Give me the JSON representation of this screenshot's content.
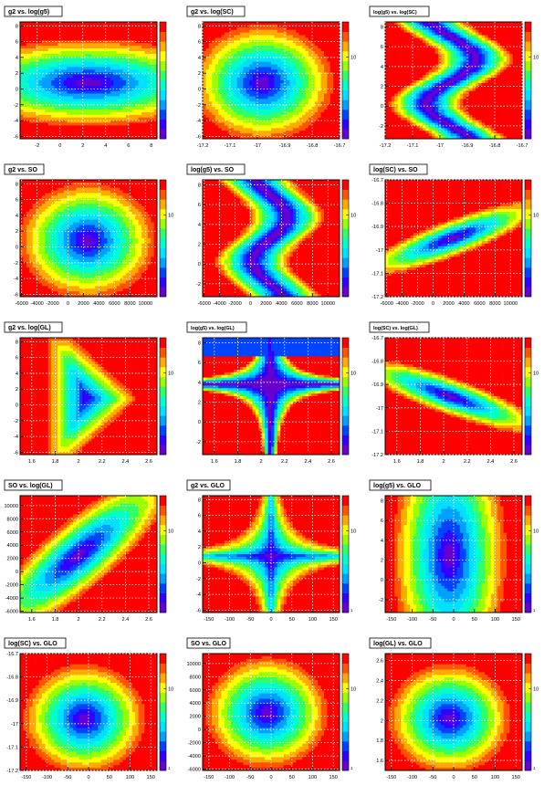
{
  "page": {
    "footer_text": ""
  },
  "colors": {
    "palette": [
      "#6600cc",
      "#3300ff",
      "#0044ff",
      "#00a0ff",
      "#00e0ff",
      "#00ffcc",
      "#33ff66",
      "#99ff00",
      "#ffff00",
      "#ffaa00",
      "#ff5500",
      "#ff0000"
    ]
  },
  "chart_data": [
    {
      "type": "heatmap",
      "title": "g2 vs. log(g5)",
      "x_ticks": [
        "-2",
        "0",
        "2",
        "4",
        "6",
        "8"
      ],
      "xlim": [
        -3.5,
        8.5
      ],
      "y_ticks": [
        "-6",
        "-4",
        "-2",
        "0",
        "2",
        "4",
        "6",
        "8"
      ],
      "ylim": [
        -6.3,
        8.5
      ],
      "z_ticks": [],
      "scale_tick": "",
      "grid": true,
      "map": {
        "kind": "ellipse",
        "cx": 2.5,
        "cy": 0.8,
        "sx": 16,
        "sy": 7.5
      }
    },
    {
      "type": "heatmap",
      "title": "g2 vs. log(SC)",
      "x_ticks": [
        "-17.2",
        "-17.1",
        "-17",
        "-16.9",
        "-16.8",
        "-16.7"
      ],
      "xlim": [
        -17.2,
        -16.7
      ],
      "y_ticks": [
        "-6",
        "-4",
        "-2",
        "0",
        "2",
        "4",
        "6",
        "8"
      ],
      "ylim": [
        -6.3,
        8.5
      ],
      "z_ticks": [
        "10"
      ],
      "scale_tick": "",
      "grid": true,
      "map": {
        "kind": "ellipse",
        "cx": -16.98,
        "cy": 0.8,
        "sx": 0.35,
        "sy": 10
      }
    },
    {
      "type": "heatmap",
      "title": "log(g5) vs. log(SC)",
      "x_ticks": [
        "-17.2",
        "-17.1",
        "-17",
        "-16.9",
        "-16.8",
        "-16.7"
      ],
      "xlim": [
        -17.2,
        -16.7
      ],
      "y_ticks": [
        "-2",
        "0",
        "2",
        "4",
        "6",
        "8"
      ],
      "ylim": [
        -3.3,
        8.5
      ],
      "z_ticks": [
        "10"
      ],
      "scale_tick": "",
      "grid": true,
      "map": {
        "kind": "wave",
        "cx": -16.96,
        "amp": 0.09,
        "cy": 2.5,
        "period": 9,
        "sx": 0.28
      }
    },
    {
      "type": "heatmap",
      "title": "g2 vs. SO",
      "x_ticks": [
        "-6000",
        "-4000",
        "-2000",
        "0",
        "2000",
        "4000",
        "6000",
        "8000",
        "10000"
      ],
      "xlim": [
        -6200,
        11500
      ],
      "y_ticks": [
        "-6",
        "-4",
        "-2",
        "0",
        "2",
        "4",
        "6",
        "8"
      ],
      "ylim": [
        -6.3,
        8.5
      ],
      "z_ticks": [
        "10"
      ],
      "scale_tick": "",
      "grid": true,
      "map": {
        "kind": "ellipse",
        "cx": 2500,
        "cy": 0.8,
        "sx": 12000,
        "sy": 10
      }
    },
    {
      "type": "heatmap",
      "title": "log(g5) vs. SO",
      "x_ticks": [
        "-6000",
        "-4000",
        "-2000",
        "0",
        "2000",
        "4000",
        "6000",
        "8000",
        "10000"
      ],
      "xlim": [
        -6200,
        11500
      ],
      "y_ticks": [
        "-2",
        "0",
        "2",
        "4",
        "6",
        "8"
      ],
      "ylim": [
        -3.3,
        8.5
      ],
      "z_ticks": [
        "10"
      ],
      "scale_tick": "",
      "grid": true,
      "map": {
        "kind": "wave",
        "cx": 2500,
        "amp": 2200,
        "cy": 2.5,
        "period": 9,
        "sx": 10000
      }
    },
    {
      "type": "heatmap",
      "title": "log(SC) vs. SO",
      "x_ticks": [
        "-6000",
        "-4000",
        "-2000",
        "0",
        "2000",
        "4000",
        "6000",
        "8000",
        "10000"
      ],
      "xlim": [
        -6200,
        11500
      ],
      "y_ticks": [
        "-17.2",
        "-17.1",
        "-17",
        "-16.9",
        "-16.8",
        "-16.7"
      ],
      "ylim": [
        -17.2,
        -16.7
      ],
      "z_ticks": [
        "10"
      ],
      "scale_tick": "",
      "grid": true,
      "map": {
        "kind": "diag",
        "cx": 2500,
        "cy": -16.95,
        "slope": 0.5,
        "sx": 6500,
        "sy": 0.09,
        "dir": 1
      }
    },
    {
      "type": "heatmap",
      "title": "g2 vs. log(GL)",
      "x_ticks": [
        "1.6",
        "1.8",
        "2",
        "2.2",
        "2.4",
        "2.6"
      ],
      "xlim": [
        1.5,
        2.67
      ],
      "y_ticks": [
        "-6",
        "-4",
        "-2",
        "0",
        "2",
        "4",
        "6",
        "8"
      ],
      "ylim": [
        -6.3,
        8.5
      ],
      "z_ticks": [
        "10"
      ],
      "scale_tick": "",
      "grid": true,
      "map": {
        "kind": "tri",
        "cx": 2.02,
        "cy": 0.8,
        "sx": 1.1,
        "sy": 14
      }
    },
    {
      "type": "heatmap",
      "title": "log(g5) vs. log(GL)",
      "x_ticks": [
        "1.6",
        "1.8",
        "2",
        "2.2",
        "2.4",
        "2.6"
      ],
      "xlim": [
        1.5,
        2.67
      ],
      "y_ticks": [
        "-2",
        "0",
        "2",
        "4",
        "6",
        "8"
      ],
      "ylim": [
        -3.3,
        8.5
      ],
      "z_ticks": [
        "10"
      ],
      "scale_tick": "",
      "grid": true,
      "map": {
        "kind": "hyper",
        "cx": 2.08,
        "cy": 3.8,
        "sx": 0.5,
        "sy": 5
      }
    },
    {
      "type": "heatmap",
      "title": "log(SC) vs. log(GL)",
      "x_ticks": [
        "1.6",
        "1.8",
        "2",
        "2.2",
        "2.4",
        "2.6"
      ],
      "xlim": [
        1.5,
        2.67
      ],
      "y_ticks": [
        "-17.2",
        "-17.1",
        "-17",
        "-16.9",
        "-16.8",
        "-16.7"
      ],
      "ylim": [
        -17.2,
        -16.7
      ],
      "z_ticks": [
        "10"
      ],
      "scale_tick": "",
      "grid": true,
      "map": {
        "kind": "diag",
        "cx": 2.05,
        "cy": -16.95,
        "slope": 0.43,
        "sx": 0.45,
        "sy": 0.09,
        "dir": -1
      }
    },
    {
      "type": "heatmap",
      "title": "SO vs. log(GL)",
      "x_ticks": [
        "1.6",
        "1.8",
        "2",
        "2.2",
        "2.4",
        "2.6"
      ],
      "xlim": [
        1.5,
        2.67
      ],
      "y_ticks": [
        "-6000",
        "-4000",
        "-2000",
        "0",
        "2000",
        "4000",
        "6000",
        "8000",
        "10000"
      ],
      "ylim": [
        -6200,
        11500
      ],
      "z_ticks": [
        "10"
      ],
      "scale_tick": "",
      "grid": true,
      "map": {
        "kind": "diag",
        "cx": 2.0,
        "cy": 2500,
        "slope": 0.45,
        "sx": 0.45,
        "sy": 7000,
        "dir": 1
      }
    },
    {
      "type": "heatmap",
      "title": "g2 vs. GLO",
      "x_ticks": [
        "-150",
        "-100",
        "-50",
        "0",
        "50",
        "100",
        "150"
      ],
      "xlim": [
        -165,
        165
      ],
      "y_ticks": [
        "-6",
        "-4",
        "-2",
        "0",
        "2",
        "4",
        "6",
        "8"
      ],
      "ylim": [
        -6.3,
        8.5
      ],
      "z_ticks": [
        "10"
      ],
      "scale_tick": "1",
      "grid": true,
      "map": {
        "kind": "star",
        "cx": 0,
        "cy": 0.8,
        "sx": 90,
        "sy": 4
      }
    },
    {
      "type": "heatmap",
      "title": "log(g5) vs. GLO",
      "x_ticks": [
        "-150",
        "-100",
        "-50",
        "0",
        "50",
        "100",
        "150"
      ],
      "xlim": [
        -165,
        165
      ],
      "y_ticks": [
        "-2",
        "0",
        "2",
        "4",
        "6",
        "8"
      ],
      "ylim": [
        -3.3,
        8.5
      ],
      "z_ticks": [
        "10"
      ],
      "scale_tick": "1",
      "grid": true,
      "map": {
        "kind": "ellipse",
        "cx": -10,
        "cy": 2.5,
        "sx": 185,
        "sy": 18
      }
    },
    {
      "type": "heatmap",
      "title": "log(SC) vs. GLO",
      "x_ticks": [
        "-150",
        "-100",
        "-50",
        "0",
        "50",
        "100",
        "150"
      ],
      "xlim": [
        -165,
        165
      ],
      "y_ticks": [
        "-17.2",
        "-17.1",
        "-17",
        "-16.9",
        "-16.8",
        "-16.7"
      ],
      "ylim": [
        -17.2,
        -16.7
      ],
      "z_ticks": [
        "10"
      ],
      "scale_tick": "1",
      "grid": true,
      "map": {
        "kind": "ellipse",
        "cx": -10,
        "cy": -16.98,
        "sx": 200,
        "sy": 0.32
      }
    },
    {
      "type": "heatmap",
      "title": "SO vs. GLO",
      "x_ticks": [
        "-150",
        "-100",
        "-50",
        "0",
        "50",
        "100",
        "150"
      ],
      "xlim": [
        -165,
        165
      ],
      "y_ticks": [
        "-6000",
        "-4000",
        "-2000",
        "0",
        "2000",
        "4000",
        "6000",
        "8000",
        "10000"
      ],
      "ylim": [
        -6200,
        11500
      ],
      "z_ticks": [
        "10"
      ],
      "scale_tick": "1",
      "grid": true,
      "map": {
        "kind": "ellipse",
        "cx": -10,
        "cy": 2500,
        "sx": 200,
        "sy": 11500
      }
    },
    {
      "type": "heatmap",
      "title": "log(GL) vs. GLO",
      "x_ticks": [
        "-150",
        "-100",
        "-50",
        "0",
        "50",
        "100",
        "150"
      ],
      "xlim": [
        -165,
        165
      ],
      "y_ticks": [
        "1.6",
        "1.8",
        "2",
        "2.2",
        "2.4",
        "2.6"
      ],
      "ylim": [
        1.5,
        2.67
      ],
      "z_ticks": [
        "10"
      ],
      "scale_tick": "1",
      "grid": true,
      "map": {
        "kind": "ellipse",
        "cx": -10,
        "cy": 2.02,
        "sx": 200,
        "sy": 0.75
      }
    }
  ]
}
